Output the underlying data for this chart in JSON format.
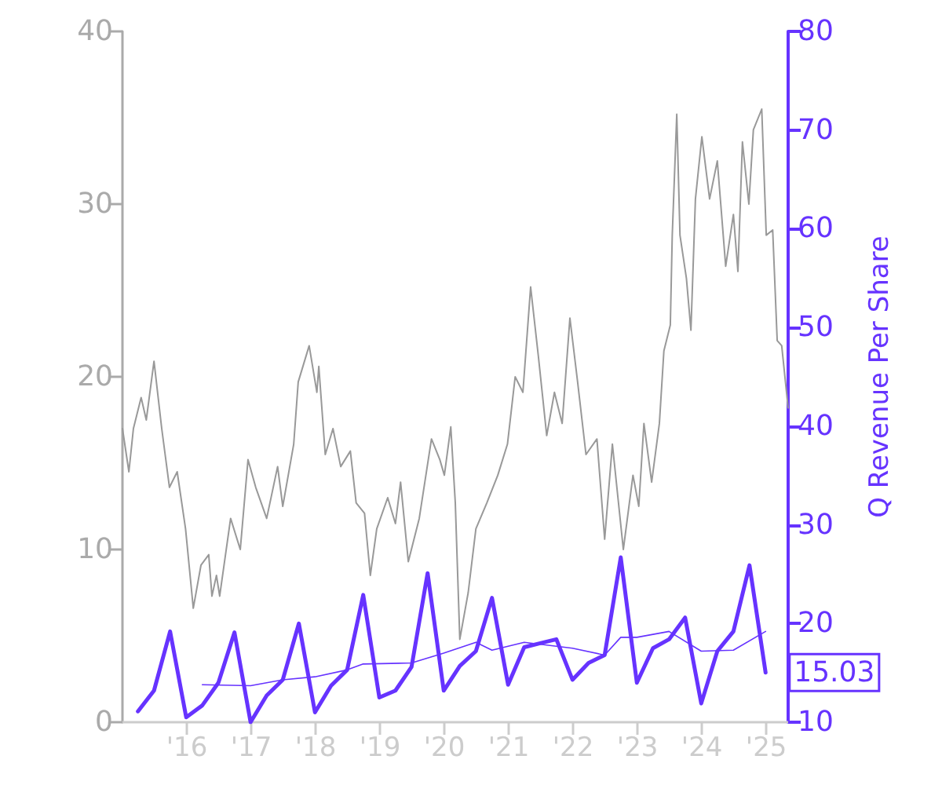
{
  "chart_data": {
    "type": "line",
    "y2label": "Q Revenue Per Share",
    "xlim": [
      2015,
      2025.34
    ],
    "xticks": [
      {
        "value": 2016,
        "label": "'16"
      },
      {
        "value": 2017,
        "label": "'17"
      },
      {
        "value": 2018,
        "label": "'18"
      },
      {
        "value": 2019,
        "label": "'19"
      },
      {
        "value": 2020,
        "label": "'20"
      },
      {
        "value": 2021,
        "label": "'21"
      },
      {
        "value": 2022,
        "label": "'22"
      },
      {
        "value": 2023,
        "label": "'23"
      },
      {
        "value": 2024,
        "label": "'24"
      },
      {
        "value": 2025,
        "label": "'25"
      }
    ],
    "ylim": [
      0,
      40
    ],
    "yticks": [
      0,
      10,
      20,
      30,
      40
    ],
    "y2lim": [
      10,
      80
    ],
    "y2ticks": [
      10,
      20,
      30,
      40,
      50,
      60,
      70,
      80
    ],
    "grid": false,
    "marker": "none",
    "line_style": "solid",
    "series": [
      {
        "color": "#999999",
        "x": [
          2015.0,
          2015.1,
          2015.17,
          2015.29,
          2015.37,
          2015.49,
          2015.61,
          2015.73,
          2015.85,
          2015.98,
          2016.1,
          2016.22,
          2016.34,
          2016.39,
          2016.46,
          2016.51,
          2016.68,
          2016.83,
          2016.95,
          2017.07,
          2017.24,
          2017.41,
          2017.49,
          2017.66,
          2017.73,
          2017.9,
          2018.02,
          2018.05,
          2018.15,
          2018.27,
          2018.39,
          2018.54,
          2018.63,
          2018.76,
          2018.85,
          2018.95,
          2019.12,
          2019.24,
          2019.32,
          2019.44,
          2019.61,
          2019.8,
          2019.93,
          2020.0,
          2020.1,
          2020.17,
          2020.24,
          2020.37,
          2020.49,
          2020.66,
          2020.83,
          2020.98,
          2021.1,
          2021.22,
          2021.34,
          2021.46,
          2021.59,
          2021.71,
          2021.83,
          2021.95,
          2022.07,
          2022.2,
          2022.37,
          2022.49,
          2022.61,
          2022.78,
          2022.93,
          2023.02,
          2023.1,
          2023.22,
          2023.34,
          2023.41,
          2023.51,
          2023.54,
          2023.61,
          2023.66,
          2023.76,
          2023.83,
          2023.9,
          2024.0,
          2024.12,
          2024.24,
          2024.37,
          2024.49,
          2024.56,
          2024.63,
          2024.73,
          2024.8,
          2024.93,
          2025.0,
          2025.1,
          2025.17,
          2025.24,
          2025.34
        ],
        "values": [
          17.0,
          14.5,
          17.0,
          18.8,
          17.5,
          20.9,
          17.0,
          13.6,
          14.5,
          11.2,
          6.6,
          9.1,
          9.7,
          7.3,
          8.5,
          7.3,
          11.8,
          10.0,
          15.2,
          13.6,
          11.8,
          14.8,
          12.5,
          16.1,
          19.7,
          21.8,
          19.1,
          20.6,
          15.5,
          17.0,
          14.8,
          15.7,
          12.7,
          12.1,
          8.5,
          11.2,
          13.0,
          11.5,
          13.9,
          9.3,
          11.8,
          16.4,
          15.2,
          14.3,
          17.1,
          12.7,
          4.8,
          7.5,
          11.2,
          12.7,
          14.3,
          16.1,
          20.0,
          19.1,
          25.2,
          21.2,
          16.6,
          19.1,
          17.3,
          23.4,
          19.7,
          15.5,
          16.4,
          10.6,
          16.1,
          10.0,
          14.3,
          12.5,
          17.3,
          13.9,
          17.3,
          21.5,
          23.0,
          28.2,
          35.2,
          28.2,
          25.7,
          22.7,
          30.3,
          33.9,
          30.3,
          32.5,
          26.4,
          29.4,
          26.1,
          33.6,
          30.0,
          34.3,
          35.5,
          28.2,
          28.5,
          22.1,
          21.8,
          18.2
        ]
      },
      {
        "color": "#6633ff",
        "axis": "y2",
        "x": [
          2015.24,
          2015.49,
          2015.74,
          2015.99,
          2016.24,
          2016.49,
          2016.74,
          2016.99,
          2017.24,
          2017.49,
          2017.74,
          2017.99,
          2018.24,
          2018.49,
          2018.74,
          2018.99,
          2019.24,
          2019.49,
          2019.74,
          2019.99,
          2020.24,
          2020.49,
          2020.74,
          2020.99,
          2021.24,
          2021.49,
          2021.74,
          2021.99,
          2022.24,
          2022.49,
          2022.74,
          2022.99,
          2023.24,
          2023.49,
          2023.74,
          2023.99,
          2024.24,
          2024.49,
          2024.74,
          2024.99
        ],
        "values": [
          11.1,
          13.2,
          19.2,
          10.5,
          11.7,
          14.0,
          19.1,
          10.0,
          12.7,
          14.3,
          20.0,
          11.0,
          13.7,
          15.3,
          22.9,
          12.5,
          13.2,
          15.6,
          25.1,
          13.2,
          15.7,
          17.2,
          22.6,
          13.8,
          17.6,
          18.0,
          18.4,
          14.3,
          16.0,
          16.8,
          26.7,
          14.0,
          17.5,
          18.4,
          20.6,
          11.9,
          17.2,
          19.2,
          25.9,
          15.03
        ],
        "value_labels": [
          null,
          null,
          null,
          null,
          null,
          null,
          null,
          null,
          null,
          null,
          null,
          null,
          null,
          null,
          null,
          null,
          null,
          null,
          null,
          null,
          null,
          null,
          null,
          null,
          null,
          null,
          null,
          null,
          null,
          null,
          null,
          null,
          null,
          null,
          null,
          null,
          null,
          null,
          null,
          "15.03"
        ]
      },
      {
        "color": "#6633ff",
        "axis": "y2",
        "x": [
          2016.24,
          2016.99,
          2017.49,
          2017.99,
          2018.49,
          2018.74,
          2019.49,
          2019.99,
          2020.49,
          2020.74,
          2021.24,
          2021.99,
          2022.49,
          2022.74,
          2022.99,
          2023.49,
          2023.99,
          2024.49,
          2024.99
        ],
        "values": [
          13.8,
          13.7,
          14.3,
          14.6,
          15.3,
          15.9,
          16.0,
          17.0,
          18.1,
          17.3,
          18.1,
          17.5,
          16.8,
          18.6,
          18.6,
          19.2,
          17.2,
          17.3,
          19.2
        ]
      }
    ]
  }
}
